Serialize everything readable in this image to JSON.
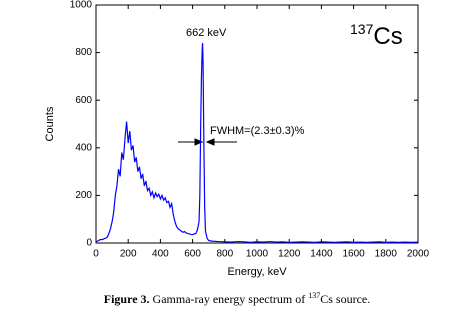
{
  "chart_data": {
    "type": "line",
    "x": [
      0,
      10,
      20,
      30,
      40,
      50,
      60,
      70,
      80,
      90,
      100,
      110,
      120,
      130,
      140,
      150,
      160,
      170,
      180,
      190,
      200,
      210,
      220,
      230,
      240,
      250,
      260,
      270,
      280,
      290,
      300,
      310,
      320,
      330,
      340,
      350,
      360,
      370,
      380,
      390,
      400,
      410,
      420,
      430,
      440,
      450,
      460,
      470,
      480,
      490,
      500,
      510,
      520,
      530,
      540,
      550,
      560,
      570,
      580,
      590,
      600,
      610,
      620,
      630,
      640,
      645,
      650,
      655,
      660,
      662,
      665,
      670,
      675,
      680,
      690,
      700,
      720,
      760,
      800,
      840,
      880,
      920,
      960,
      1000,
      1040,
      1080,
      1120,
      1160,
      1200,
      1240,
      1280,
      1320,
      1360,
      1400,
      1440,
      1480,
      1520,
      1560,
      1600,
      1640,
      1680,
      1720,
      1760,
      1800,
      1840,
      1880,
      1920,
      1960,
      2000
    ],
    "series": [
      {
        "name": "137Cs spectrum",
        "color": "#0000ff",
        "values": [
          5,
          8,
          12,
          15,
          14,
          18,
          20,
          25,
          40,
          60,
          90,
          130,
          200,
          240,
          310,
          280,
          380,
          350,
          440,
          510,
          420,
          470,
          390,
          410,
          340,
          360,
          300,
          320,
          270,
          290,
          240,
          260,
          220,
          230,
          200,
          215,
          190,
          210,
          195,
          205,
          185,
          200,
          180,
          190,
          170,
          175,
          150,
          165,
          120,
          90,
          70,
          60,
          55,
          50,
          45,
          48,
          42,
          40,
          38,
          36,
          35,
          38,
          40,
          55,
          90,
          200,
          480,
          700,
          820,
          840,
          760,
          420,
          150,
          50,
          20,
          10,
          8,
          6,
          5,
          4,
          6,
          5,
          3,
          5,
          4,
          6,
          4,
          5,
          3,
          4,
          5,
          4,
          3,
          5,
          4,
          3,
          4,
          5,
          3,
          4,
          3,
          4,
          5,
          3,
          4,
          3,
          4,
          3,
          4
        ]
      }
    ],
    "xlabel": "Energy, keV",
    "ylabel": "Counts",
    "xlim": [
      0,
      2000
    ],
    "xticks": [
      0,
      200,
      400,
      600,
      800,
      1000,
      1200,
      1400,
      1600,
      1800,
      2000
    ],
    "ylim": [
      0,
      1000
    ],
    "yticks": [
      0,
      200,
      400,
      600,
      800,
      1000
    ],
    "peak_label": "662 keV",
    "fwhm_label": "FWHM=(2.3±0.3)%",
    "isotope_mass": "137",
    "isotope_symbol": "Cs"
  },
  "caption": {
    "label": "Figure 3.",
    "text_before": " Gamma-ray energy spectrum of ",
    "superscript": "137",
    "text_after": "Cs source."
  }
}
